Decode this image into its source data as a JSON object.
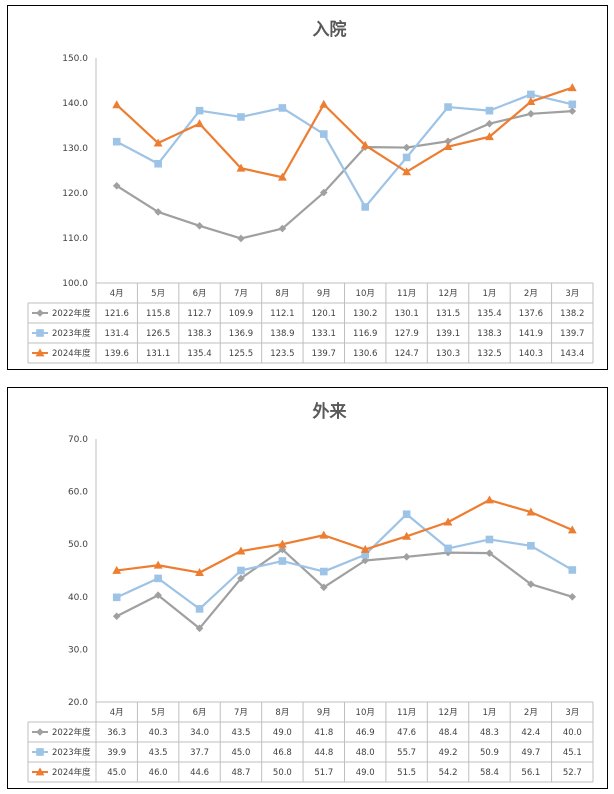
{
  "chart_data": [
    {
      "type": "line",
      "title": "入院",
      "categories": [
        "4月",
        "5月",
        "6月",
        "7月",
        "8月",
        "9月",
        "10月",
        "11月",
        "12月",
        "1月",
        "2月",
        "3月"
      ],
      "ylim": [
        100.0,
        150.0
      ],
      "yticks": [
        "100.0",
        "110.0",
        "120.0",
        "130.0",
        "140.0",
        "150.0"
      ],
      "grid": false,
      "legend": "data-table-left",
      "series": [
        {
          "name": "2022年度",
          "color": "#a0a0a0",
          "marker": "diamond",
          "values": [
            121.6,
            115.8,
            112.7,
            109.9,
            112.1,
            120.1,
            130.2,
            130.1,
            131.5,
            135.4,
            137.6,
            138.2
          ]
        },
        {
          "name": "2023年度",
          "color": "#9dc3e6",
          "marker": "square",
          "values": [
            131.4,
            126.5,
            138.3,
            136.9,
            138.9,
            133.1,
            116.9,
            127.9,
            139.1,
            138.3,
            141.9,
            139.7
          ]
        },
        {
          "name": "2024年度",
          "color": "#ed7d31",
          "marker": "triangle",
          "values": [
            139.6,
            131.1,
            135.4,
            125.5,
            123.5,
            139.7,
            130.6,
            124.7,
            130.3,
            132.5,
            140.3,
            143.4
          ]
        }
      ],
      "table": [
        [
          "121.6",
          "115.8",
          "112.7",
          "109.9",
          "112.1",
          "120.1",
          "130.2",
          "130.1",
          "131.5",
          "135.4",
          "137.6",
          "138.2"
        ],
        [
          "131.4",
          "126.5",
          "138.3",
          "136.9",
          "138.9",
          "133.1",
          "116.9",
          "127.9",
          "139.1",
          "138.3",
          "141.9",
          "139.7"
        ],
        [
          "139.6",
          "131.1",
          "135.4",
          "125.5",
          "123.5",
          "139.7",
          "130.6",
          "124.7",
          "130.3",
          "132.5",
          "140.3",
          "143.4"
        ]
      ]
    },
    {
      "type": "line",
      "title": "外来",
      "categories": [
        "4月",
        "5月",
        "6月",
        "7月",
        "8月",
        "9月",
        "10月",
        "11月",
        "12月",
        "1月",
        "2月",
        "3月"
      ],
      "ylim": [
        20.0,
        70.0
      ],
      "yticks": [
        "20.0",
        "30.0",
        "40.0",
        "50.0",
        "60.0",
        "70.0"
      ],
      "grid": false,
      "legend": "data-table-left",
      "series": [
        {
          "name": "2022年度",
          "color": "#a0a0a0",
          "marker": "diamond",
          "values": [
            36.3,
            40.3,
            34.0,
            43.5,
            49.0,
            41.8,
            46.9,
            47.6,
            48.4,
            48.3,
            42.4,
            40.0
          ]
        },
        {
          "name": "2023年度",
          "color": "#9dc3e6",
          "marker": "square",
          "values": [
            39.9,
            43.5,
            37.7,
            45.0,
            46.8,
            44.8,
            48.0,
            55.7,
            49.2,
            50.9,
            49.7,
            45.1
          ]
        },
        {
          "name": "2024年度",
          "color": "#ed7d31",
          "marker": "triangle",
          "values": [
            45.0,
            46.0,
            44.6,
            48.7,
            50.0,
            51.7,
            49.0,
            51.5,
            54.2,
            58.4,
            56.1,
            52.7
          ]
        }
      ],
      "table": [
        [
          "36.3",
          "40.3",
          "34.0",
          "43.5",
          "49.0",
          "41.8",
          "46.9",
          "47.6",
          "48.4",
          "48.3",
          "42.4",
          "40.0"
        ],
        [
          "39.9",
          "43.5",
          "37.7",
          "45.0",
          "46.8",
          "44.8",
          "48.0",
          "55.7",
          "49.2",
          "50.9",
          "49.7",
          "45.1"
        ],
        [
          "45.0",
          "46.0",
          "44.6",
          "48.7",
          "50.0",
          "51.7",
          "49.0",
          "51.5",
          "54.2",
          "58.4",
          "56.1",
          "52.7"
        ]
      ]
    }
  ]
}
